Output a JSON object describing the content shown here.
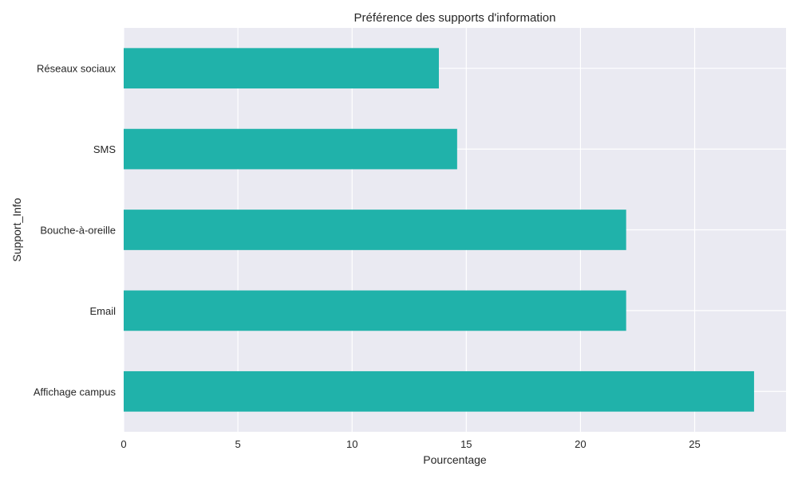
{
  "chart_data": {
    "type": "bar",
    "orientation": "horizontal",
    "title": "Préférence des supports d'information",
    "xlabel": "Pourcentage",
    "ylabel": "Support_Info",
    "categories": [
      "Affichage campus",
      "Email",
      "Bouche-à-oreille",
      "SMS",
      "Réseaux sociaux"
    ],
    "values": [
      27.6,
      22.0,
      22.0,
      14.6,
      13.8
    ],
    "xlim": [
      0,
      29
    ],
    "xticks": [
      0,
      5,
      10,
      15,
      20,
      25
    ],
    "grid": true,
    "colors": {
      "bar": "#20b2aa",
      "plot_background": "#eaeaf2",
      "grid": "#ffffff",
      "text": "#262626"
    }
  }
}
